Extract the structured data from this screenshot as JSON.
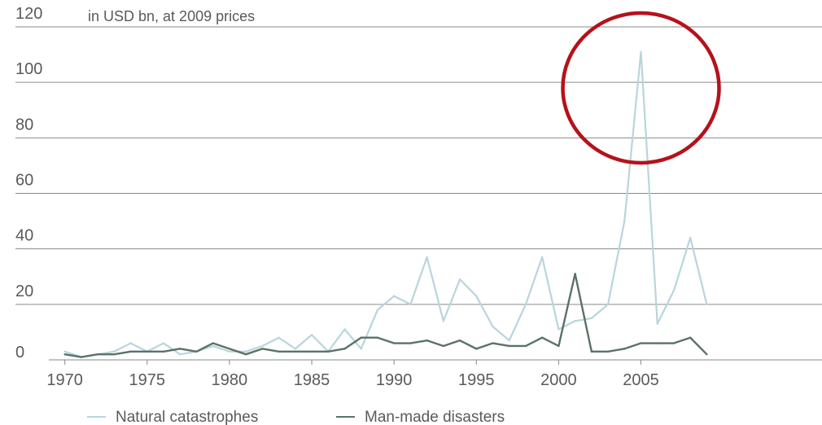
{
  "chart_data": {
    "type": "line",
    "unit_label": "in USD bn, at 2009 prices",
    "x": [
      1970,
      1971,
      1972,
      1973,
      1974,
      1975,
      1976,
      1977,
      1978,
      1979,
      1980,
      1981,
      1982,
      1983,
      1984,
      1985,
      1986,
      1987,
      1988,
      1989,
      1990,
      1991,
      1992,
      1993,
      1994,
      1995,
      1996,
      1997,
      1998,
      1999,
      2000,
      2001,
      2002,
      2003,
      2004,
      2005,
      2006,
      2007,
      2008,
      2009
    ],
    "x_tick_labels": [
      "1970",
      "1975",
      "1980",
      "1985",
      "1990",
      "1995",
      "2000",
      "2005"
    ],
    "x_ticks": [
      1970,
      1975,
      1980,
      1985,
      1990,
      1995,
      2000,
      2005
    ],
    "y_tick_labels": [
      "0",
      "20",
      "40",
      "60",
      "80",
      "100",
      "120"
    ],
    "y_ticks": [
      0,
      20,
      40,
      60,
      80,
      100,
      120
    ],
    "xlim": [
      1967,
      2016
    ],
    "ylim": [
      0,
      120
    ],
    "grid": "horizontal",
    "legend_position": "bottom",
    "series": [
      {
        "name": "Natural catastrophes",
        "color": "#b9d5dc",
        "values": [
          3,
          1,
          2,
          3,
          6,
          3,
          6,
          2,
          3,
          5,
          3,
          3,
          5,
          8,
          4,
          9,
          3,
          11,
          4,
          18,
          23,
          20,
          37,
          14,
          29,
          23,
          12,
          7,
          20,
          37,
          11,
          14,
          15,
          20,
          50,
          111,
          13,
          25,
          44,
          20
        ]
      },
      {
        "name": "Man-made disasters",
        "color": "#5a7269",
        "values": [
          2,
          1,
          2,
          2,
          3,
          3,
          3,
          4,
          3,
          6,
          4,
          2,
          4,
          3,
          3,
          3,
          3,
          4,
          8,
          8,
          6,
          6,
          7,
          5,
          7,
          4,
          6,
          5,
          5,
          8,
          5,
          31,
          3,
          3,
          4,
          6,
          6,
          6,
          8,
          2
        ]
      }
    ],
    "annotation": {
      "shape": "ellipse",
      "color": "#b5121b",
      "center_x": 2005,
      "center_y": 98
    }
  }
}
